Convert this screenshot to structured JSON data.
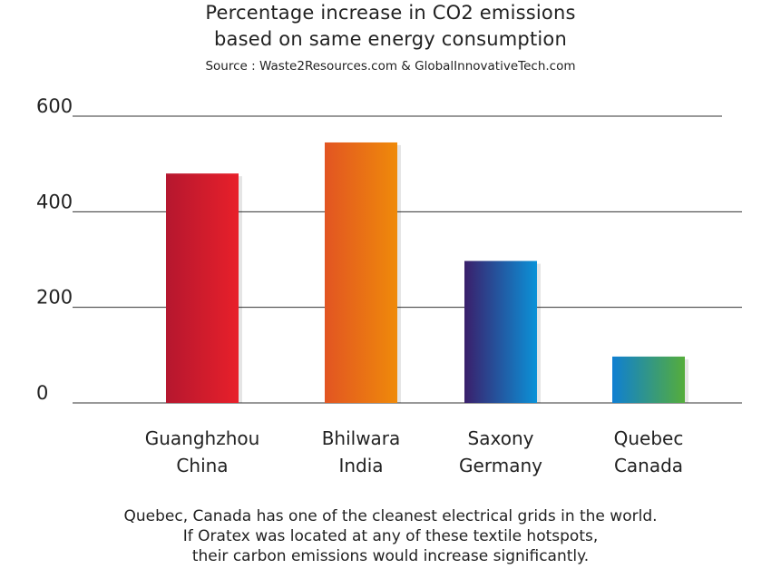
{
  "title_line1": "Percentage increase in CO2 emissions",
  "title_line2": "based on same energy consumption",
  "source": "Source : Waste2Resources.com & GlobalInnovativeTech.com",
  "caption": [
    "Quebec, Canada has one of the cleanest electrical grids in the world.",
    "If Oratex was located at any of these textile hotspots,",
    "their carbon emissions would increase significantly."
  ],
  "chart_data": {
    "type": "bar",
    "title": "Percentage increase in CO2 emissions based on same energy consumption",
    "subtitle": "Source : Waste2Resources.com & GlobalInnovativeTech.com",
    "categories": [
      [
        "Guanghzhou",
        "China"
      ],
      [
        "Bhilwara",
        "India"
      ],
      [
        "Saxony",
        "Germany"
      ],
      [
        "Quebec",
        "Canada"
      ]
    ],
    "values": [
      480,
      545,
      297,
      97
    ],
    "yticks": [
      0,
      200,
      400,
      600
    ],
    "ylim": [
      0,
      600
    ],
    "xlabel": "",
    "ylabel": "",
    "grid": true,
    "legend": "none",
    "colors": [
      [
        "#b5172f",
        "#e8202a"
      ],
      [
        "#e25522",
        "#ef8a0a"
      ],
      [
        "#3a1f6b",
        "#0b92d8"
      ],
      [
        "#0f7fd2",
        "#55ad3b"
      ]
    ],
    "axis_color": "#333333"
  }
}
